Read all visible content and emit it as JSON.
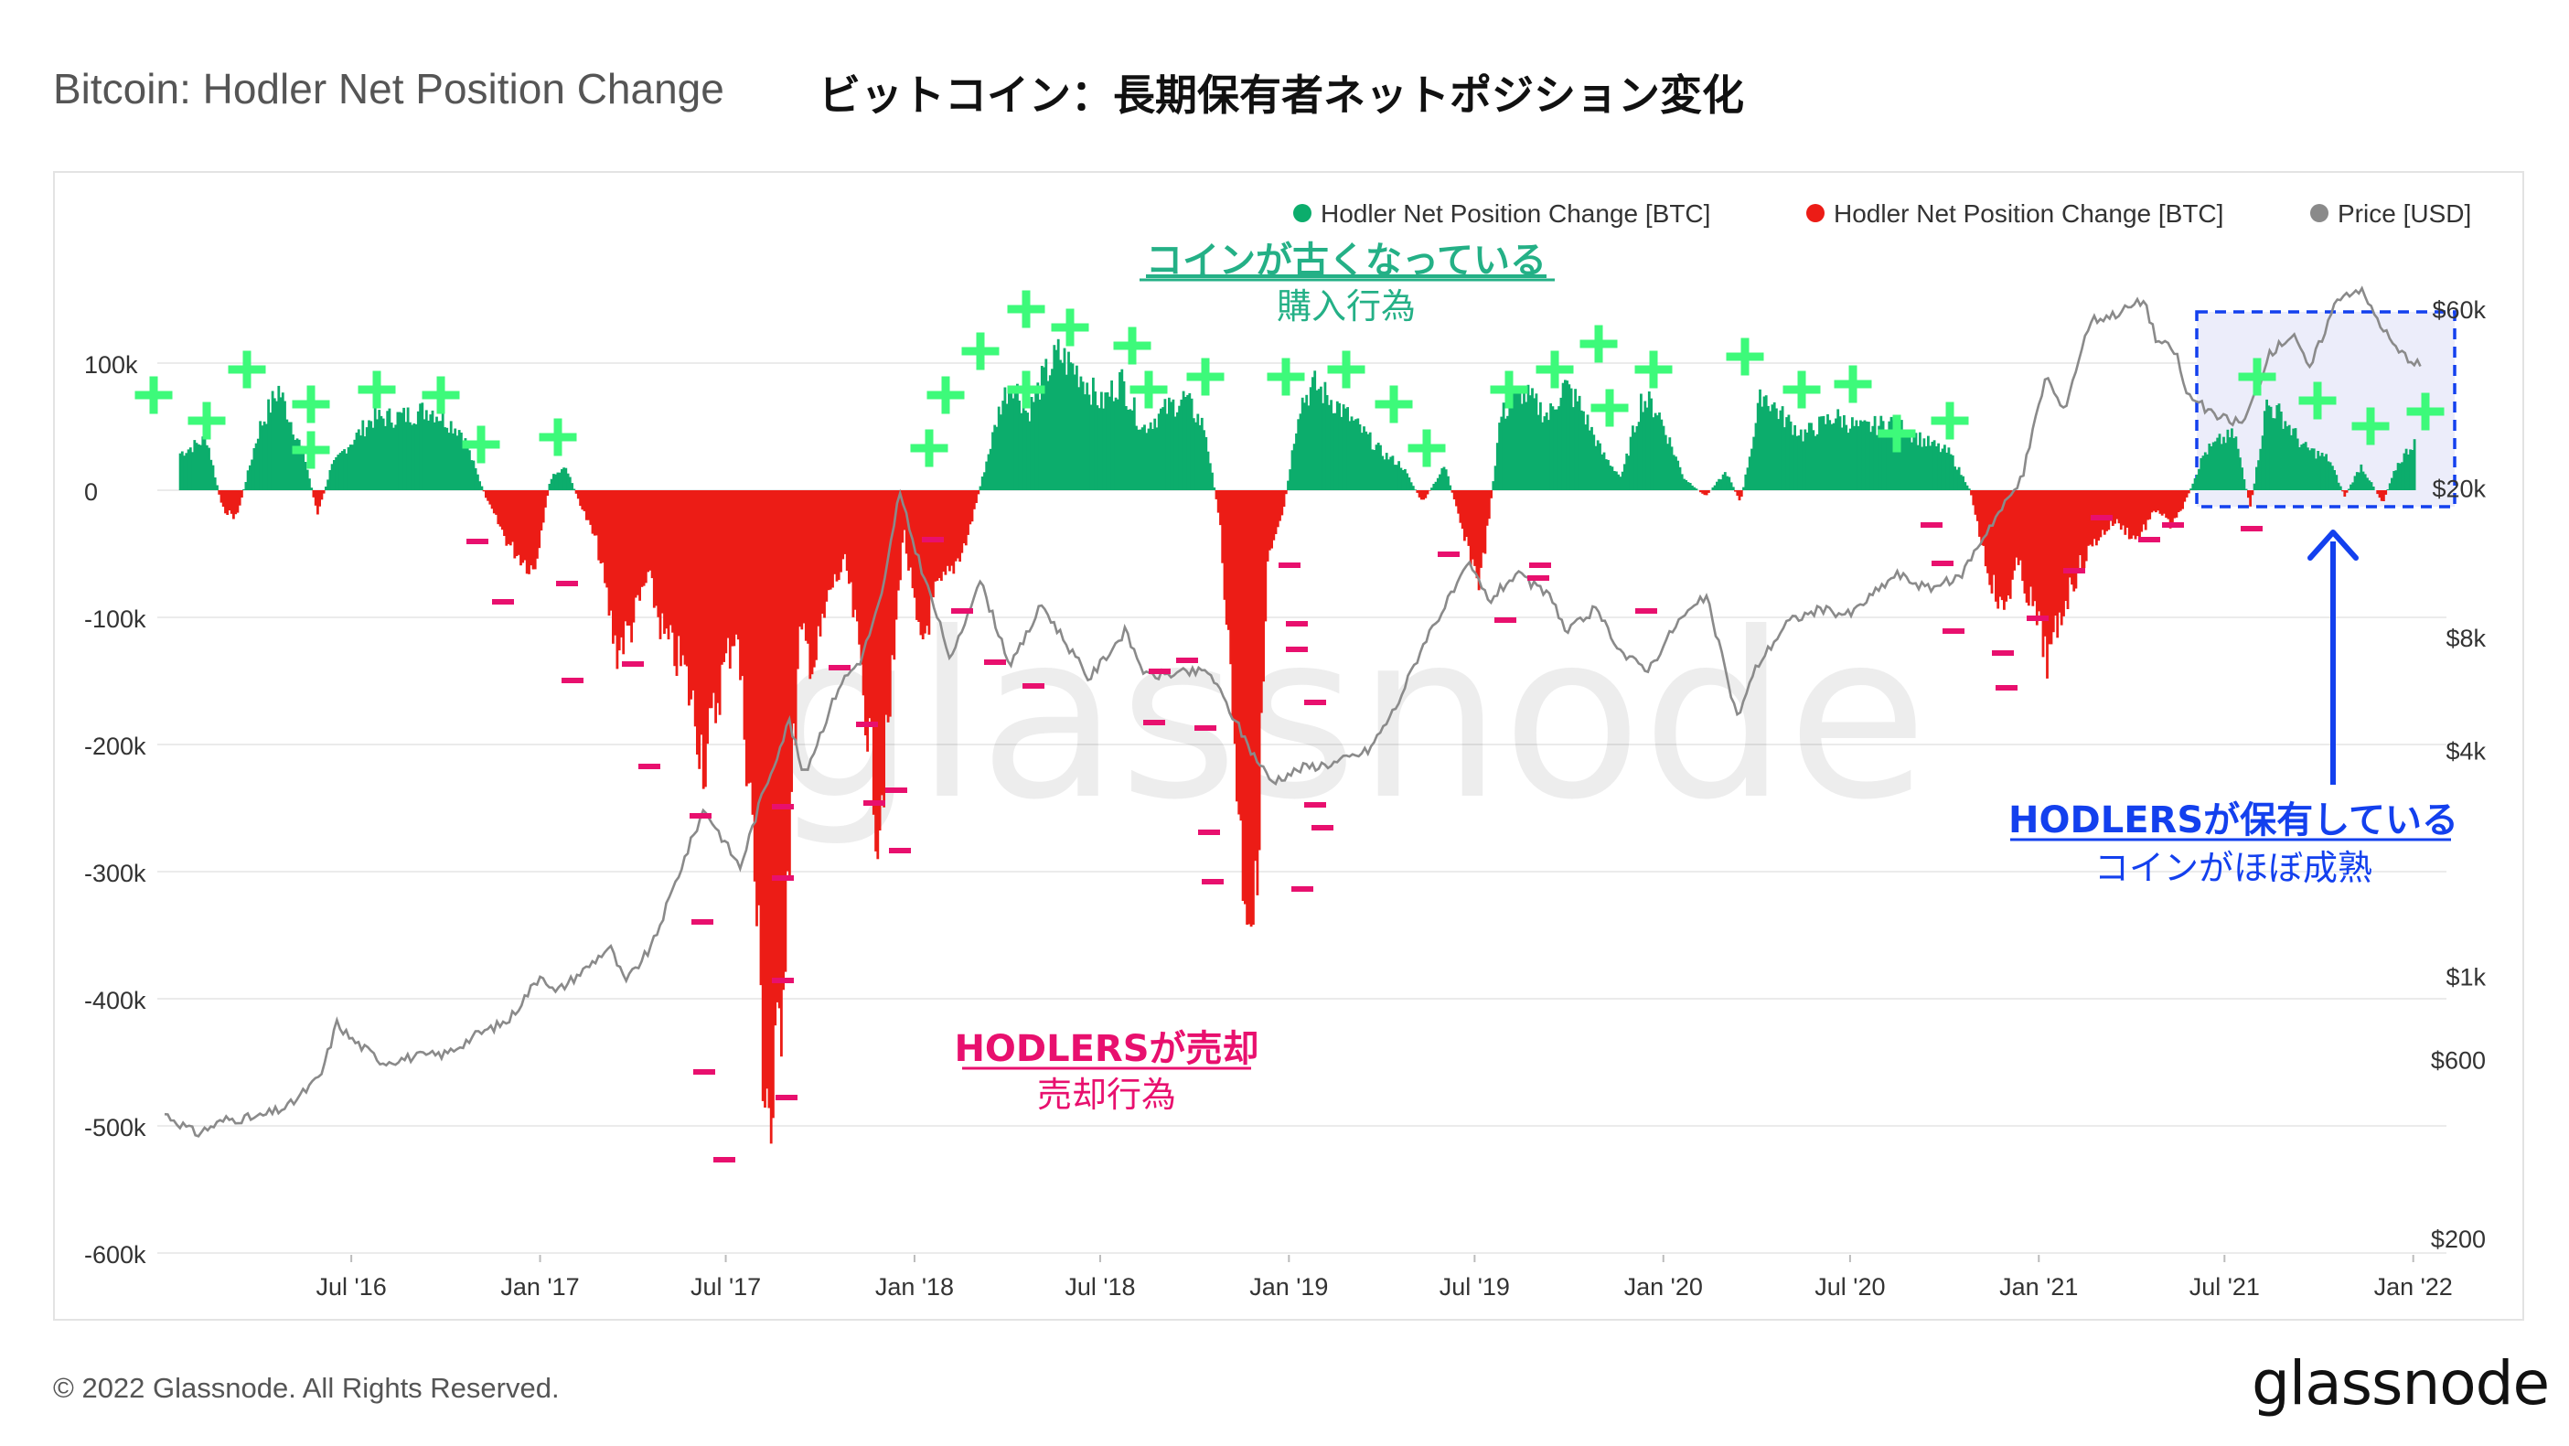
{
  "title_en": "Bitcoin: Hodler Net Position Change",
  "title_ja": "ビットコイン：長期保有者ネットポジション変化",
  "footer": "© 2022 Glassnode. All Rights Reserved.",
  "footer_logo": "glassnode",
  "watermark": "glassnode",
  "colors": {
    "green": "#0cad6c",
    "red": "#ec1c16",
    "price": "#8a8a8a",
    "plus": "#3dfa7a",
    "minus": "#e8106e",
    "blue": "#1340ee",
    "teal": "#24b086",
    "highlight": "#ecedfa"
  },
  "legend": [
    {
      "label": "Hodler Net Position Change [BTC]",
      "color": "#0cad6c"
    },
    {
      "label": "Hodler Net Position Change [BTC]",
      "color": "#ec1c16"
    },
    {
      "label": "Price [USD]",
      "color": "#8a8a8a"
    }
  ],
  "annotations": {
    "buy_title": "コインが古くなっている",
    "buy_sub": "購入行為",
    "sell_title": "HODLERSが売却",
    "sell_sub": "売却行為",
    "hold_title": "HODLERSが保有している",
    "hold_sub": "コインがほぼ成熟"
  },
  "chart_data": {
    "type": "bar",
    "x_ticks": [
      "Jul '16",
      "Jan '17",
      "Jul '17",
      "Jan '18",
      "Jul '18",
      "Jan '19",
      "Jul '19",
      "Jan '20",
      "Jul '20",
      "Jan '21",
      "Jul '21",
      "Jan '22"
    ],
    "y_left_ticks": [
      "100k",
      "0",
      "-100k",
      "-200k",
      "-300k",
      "-400k",
      "-500k",
      "-600k"
    ],
    "y_left_values": [
      100000,
      0,
      -100000,
      -200000,
      -300000,
      -400000,
      -500000,
      -600000
    ],
    "y_right_ticks": [
      "$60k",
      "$20k",
      "$8k",
      "$4k",
      "$1k",
      "$600",
      "$200"
    ],
    "y_right_values": [
      60000,
      20000,
      8000,
      4000,
      1000,
      600,
      200
    ],
    "y_right_scale": "log",
    "x_range": [
      "2016-01",
      "2022-01"
    ],
    "series": [
      {
        "name": "Hodler Net Position Change [BTC]",
        "color": "green/red",
        "keypoints": [
          [
            "2016-01-15",
            30000
          ],
          [
            "2016-02-10",
            42000
          ],
          [
            "2016-02-25",
            -15000
          ],
          [
            "2016-03-10",
            -22000
          ],
          [
            "2016-04-01",
            50000
          ],
          [
            "2016-04-20",
            82000
          ],
          [
            "2016-05-15",
            28000
          ],
          [
            "2016-05-28",
            -20000
          ],
          [
            "2016-06-10",
            18000
          ],
          [
            "2016-06-25",
            35000
          ],
          [
            "2016-07-20",
            58000
          ],
          [
            "2016-08-20",
            60000
          ],
          [
            "2016-09-15",
            66000
          ],
          [
            "2016-10-15",
            48000
          ],
          [
            "2016-11-10",
            -10000
          ],
          [
            "2016-12-01",
            -45000
          ],
          [
            "2016-12-25",
            -65000
          ],
          [
            "2017-01-10",
            10000
          ],
          [
            "2017-01-25",
            18000
          ],
          [
            "2017-02-05",
            -5000
          ],
          [
            "2017-02-25",
            -45000
          ],
          [
            "2017-03-15",
            -130000
          ],
          [
            "2017-03-30",
            -110000
          ],
          [
            "2017-04-15",
            -70000
          ],
          [
            "2017-05-01",
            -120000
          ],
          [
            "2017-05-20",
            -145000
          ],
          [
            "2017-06-10",
            -220000
          ],
          [
            "2017-06-25",
            -155000
          ],
          [
            "2017-07-10",
            -110000
          ],
          [
            "2017-07-25",
            -260000
          ],
          [
            "2017-08-05",
            -450000
          ],
          [
            "2017-08-15",
            -528000
          ],
          [
            "2017-08-28",
            -330000
          ],
          [
            "2017-09-10",
            -120000
          ],
          [
            "2017-09-25",
            -140000
          ],
          [
            "2017-10-10",
            -80000
          ],
          [
            "2017-10-25",
            -60000
          ],
          [
            "2017-11-10",
            -150000
          ],
          [
            "2017-11-25",
            -270000
          ],
          [
            "2017-12-05",
            -200000
          ],
          [
            "2017-12-20",
            -30000
          ],
          [
            "2018-01-05",
            -130000
          ],
          [
            "2018-01-20",
            -85000
          ],
          [
            "2018-02-05",
            -65000
          ],
          [
            "2018-02-20",
            -40000
          ],
          [
            "2018-03-10",
            20000
          ],
          [
            "2018-03-25",
            70000
          ],
          [
            "2018-04-05",
            90000
          ],
          [
            "2018-04-20",
            62000
          ],
          [
            "2018-05-05",
            90000
          ],
          [
            "2018-05-20",
            110000
          ],
          [
            "2018-06-10",
            95000
          ],
          [
            "2018-07-01",
            70000
          ],
          [
            "2018-07-20",
            90000
          ],
          [
            "2018-08-10",
            50000
          ],
          [
            "2018-09-01",
            65000
          ],
          [
            "2018-09-20",
            75000
          ],
          [
            "2018-10-10",
            50000
          ],
          [
            "2018-10-25",
            -30000
          ],
          [
            "2018-11-05",
            -160000
          ],
          [
            "2018-11-15",
            -300000
          ],
          [
            "2018-11-28",
            -350000
          ],
          [
            "2018-12-10",
            -60000
          ],
          [
            "2018-12-25",
            -20000
          ],
          [
            "2019-01-10",
            70000
          ],
          [
            "2019-01-25",
            85000
          ],
          [
            "2019-02-15",
            70000
          ],
          [
            "2019-03-10",
            50000
          ],
          [
            "2019-04-01",
            30000
          ],
          [
            "2019-04-20",
            20000
          ],
          [
            "2019-05-10",
            -10000
          ],
          [
            "2019-06-01",
            20000
          ],
          [
            "2019-06-20",
            -40000
          ],
          [
            "2019-07-05",
            -75000
          ],
          [
            "2019-07-15",
            -15000
          ],
          [
            "2019-07-25",
            60000
          ],
          [
            "2019-08-15",
            80000
          ],
          [
            "2019-09-10",
            60000
          ],
          [
            "2019-09-25",
            85000
          ],
          [
            "2019-10-10",
            70000
          ],
          [
            "2019-11-01",
            30000
          ],
          [
            "2019-11-20",
            10000
          ],
          [
            "2019-12-10",
            75000
          ],
          [
            "2019-12-25",
            65000
          ],
          [
            "2020-01-20",
            10000
          ],
          [
            "2020-02-10",
            -5000
          ],
          [
            "2020-03-01",
            15000
          ],
          [
            "2020-03-15",
            -10000
          ],
          [
            "2020-04-05",
            80000
          ],
          [
            "2020-04-25",
            60000
          ],
          [
            "2020-05-15",
            45000
          ],
          [
            "2020-06-15",
            60000
          ],
          [
            "2020-07-10",
            50000
          ],
          [
            "2020-08-10",
            55000
          ],
          [
            "2020-09-10",
            40000
          ],
          [
            "2020-10-05",
            30000
          ],
          [
            "2020-10-25",
            0
          ],
          [
            "2020-11-10",
            -60000
          ],
          [
            "2020-11-25",
            -100000
          ],
          [
            "2020-12-10",
            -60000
          ],
          [
            "2020-12-25",
            -95000
          ],
          [
            "2021-01-10",
            -140000
          ],
          [
            "2021-01-25",
            -90000
          ],
          [
            "2021-02-10",
            -60000
          ],
          [
            "2021-02-25",
            -40000
          ],
          [
            "2021-03-15",
            -25000
          ],
          [
            "2021-04-05",
            -40000
          ],
          [
            "2021-04-25",
            -15000
          ],
          [
            "2021-05-10",
            -30000
          ],
          [
            "2021-05-25",
            -5000
          ],
          [
            "2021-06-10",
            30000
          ],
          [
            "2021-06-25",
            40000
          ],
          [
            "2021-07-10",
            45000
          ],
          [
            "2021-07-25",
            -15000
          ],
          [
            "2021-08-10",
            70000
          ],
          [
            "2021-08-25",
            60000
          ],
          [
            "2021-09-15",
            35000
          ],
          [
            "2021-10-10",
            25000
          ],
          [
            "2021-10-25",
            -5000
          ],
          [
            "2021-11-10",
            20000
          ],
          [
            "2021-12-01",
            -10000
          ],
          [
            "2021-12-15",
            20000
          ],
          [
            "2022-01-01",
            40000
          ]
        ]
      },
      {
        "name": "Price [USD]",
        "color": "#8a8a8a",
        "keypoints": [
          [
            "2016-01-01",
            430
          ],
          [
            "2016-02-01",
            380
          ],
          [
            "2016-03-01",
            415
          ],
          [
            "2016-04-01",
            420
          ],
          [
            "2016-05-01",
            450
          ],
          [
            "2016-06-01",
            540
          ],
          [
            "2016-06-17",
            750
          ],
          [
            "2016-07-01",
            680
          ],
          [
            "2016-08-01",
            590
          ],
          [
            "2016-09-01",
            610
          ],
          [
            "2016-10-01",
            620
          ],
          [
            "2016-11-01",
            700
          ],
          [
            "2016-12-01",
            760
          ],
          [
            "2017-01-03",
            1020
          ],
          [
            "2017-01-15",
            900
          ],
          [
            "2017-02-15",
            1050
          ],
          [
            "2017-03-10",
            1200
          ],
          [
            "2017-03-25",
            960
          ],
          [
            "2017-04-20",
            1200
          ],
          [
            "2017-05-20",
            2000
          ],
          [
            "2017-06-10",
            2800
          ],
          [
            "2017-07-15",
            1950
          ],
          [
            "2017-08-05",
            3000
          ],
          [
            "2017-09-01",
            4800
          ],
          [
            "2017-09-15",
            3400
          ],
          [
            "2017-10-20",
            6000
          ],
          [
            "2017-11-10",
            7000
          ],
          [
            "2017-12-01",
            10500
          ],
          [
            "2017-12-17",
            19500
          ],
          [
            "2018-01-01",
            14000
          ],
          [
            "2018-02-06",
            6900
          ],
          [
            "2018-03-05",
            11500
          ],
          [
            "2018-04-05",
            6700
          ],
          [
            "2018-05-05",
            9800
          ],
          [
            "2018-06-20",
            6200
          ],
          [
            "2018-07-25",
            8300
          ],
          [
            "2018-08-15",
            6300
          ],
          [
            "2018-09-10",
            6400
          ],
          [
            "2018-10-15",
            6500
          ],
          [
            "2018-11-25",
            4000
          ],
          [
            "2018-12-15",
            3300
          ],
          [
            "2019-01-15",
            3600
          ],
          [
            "2019-02-15",
            3700
          ],
          [
            "2019-03-20",
            4000
          ],
          [
            "2019-04-15",
            5200
          ],
          [
            "2019-05-15",
            8000
          ],
          [
            "2019-06-26",
            12500
          ],
          [
            "2019-07-15",
            10000
          ],
          [
            "2019-08-10",
            11800
          ],
          [
            "2019-09-15",
            10200
          ],
          [
            "2019-09-28",
            8200
          ],
          [
            "2019-10-26",
            9500
          ],
          [
            "2019-11-25",
            7100
          ],
          [
            "2019-12-18",
            6600
          ],
          [
            "2020-01-15",
            8800
          ],
          [
            "2020-02-12",
            10300
          ],
          [
            "2020-03-13",
            4900
          ],
          [
            "2020-04-01",
            6700
          ],
          [
            "2020-05-01",
            8800
          ],
          [
            "2020-06-01",
            9500
          ],
          [
            "2020-07-01",
            9200
          ],
          [
            "2020-08-15",
            11800
          ],
          [
            "2020-09-15",
            10800
          ],
          [
            "2020-10-15",
            11500
          ],
          [
            "2020-11-15",
            16000
          ],
          [
            "2020-12-15",
            21000
          ],
          [
            "2021-01-08",
            40000
          ],
          [
            "2021-01-25",
            32000
          ],
          [
            "2021-02-20",
            56000
          ],
          [
            "2021-03-15",
            58000
          ],
          [
            "2021-04-14",
            63500
          ],
          [
            "2021-04-25",
            50000
          ],
          [
            "2021-05-15",
            46000
          ],
          [
            "2021-05-24",
            36000
          ],
          [
            "2021-06-22",
            31000
          ],
          [
            "2021-07-20",
            29800
          ],
          [
            "2021-08-15",
            46000
          ],
          [
            "2021-09-07",
            52000
          ],
          [
            "2021-09-21",
            41000
          ],
          [
            "2021-10-20",
            65000
          ],
          [
            "2021-11-10",
            68000
          ],
          [
            "2021-11-28",
            56000
          ],
          [
            "2021-12-15",
            47000
          ],
          [
            "2022-01-10",
            42000
          ]
        ]
      }
    ]
  }
}
